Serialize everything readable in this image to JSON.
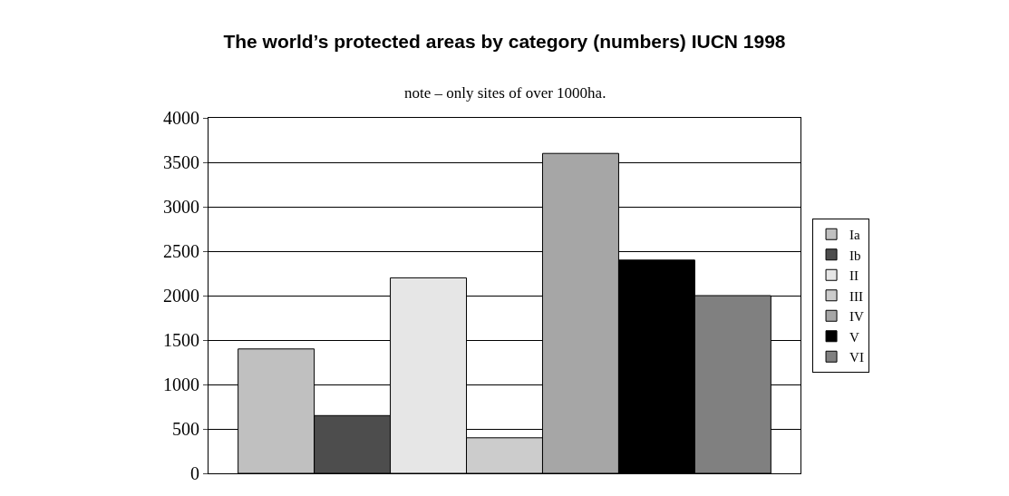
{
  "chart_data": {
    "type": "bar",
    "title": "The world’s protected areas by category (numbers) IUCN 1998",
    "subtitle": "note – only sites of over 1000ha.",
    "categories": [
      null
    ],
    "series": [
      {
        "name": "Ia",
        "color": "#c0c0c0",
        "values": [
          1400
        ]
      },
      {
        "name": "Ib",
        "color": "#4d4d4d",
        "values": [
          650
        ]
      },
      {
        "name": "II",
        "color": "#e6e6e6",
        "values": [
          2200
        ]
      },
      {
        "name": "III",
        "color": "#cccccc",
        "values": [
          400
        ]
      },
      {
        "name": "IV",
        "color": "#a6a6a6",
        "values": [
          3600
        ]
      },
      {
        "name": "V",
        "color": "#000000",
        "values": [
          2400
        ]
      },
      {
        "name": "VI",
        "color": "#808080",
        "values": [
          2000
        ]
      }
    ],
    "ylim": [
      0,
      4000
    ],
    "yticks": [
      0,
      500,
      1000,
      1500,
      2000,
      2500,
      3000,
      3500,
      4000
    ],
    "grid": "y",
    "legend": "right"
  }
}
